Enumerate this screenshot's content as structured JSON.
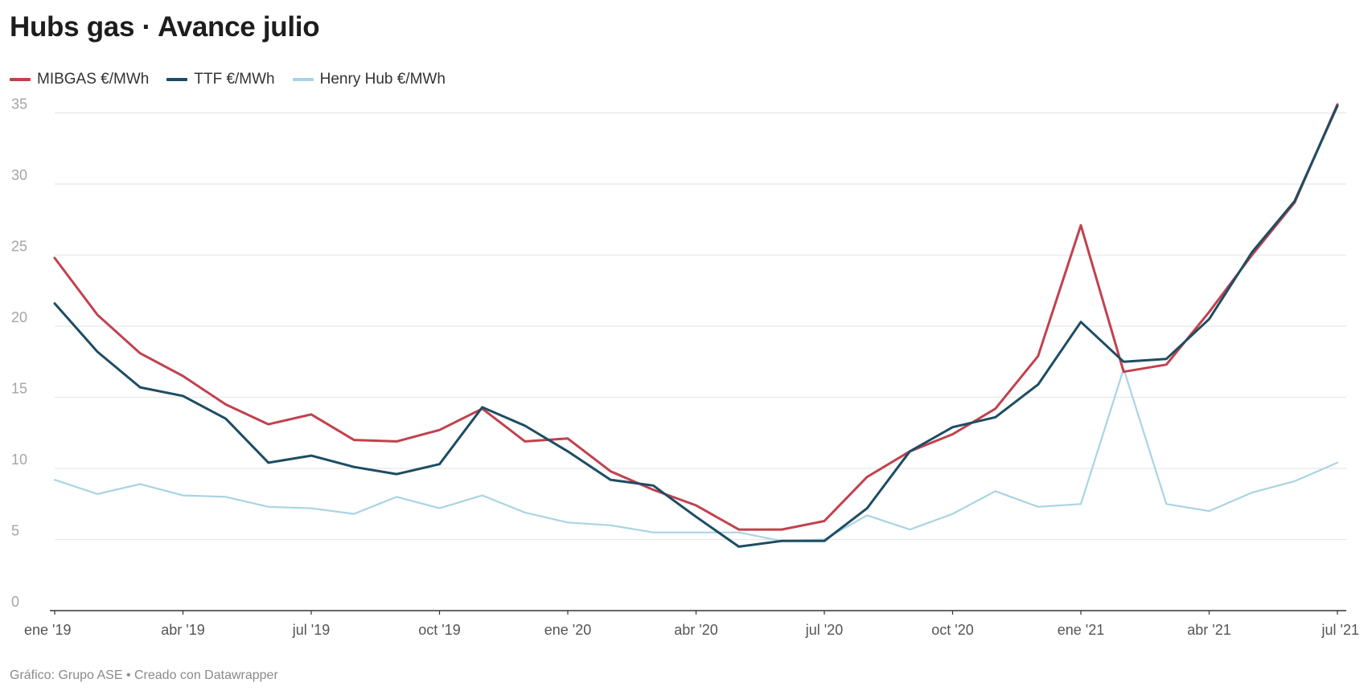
{
  "title": "Hubs gas · Avance julio",
  "footer": "Gráfico: Grupo ASE • Creado con Datawrapper",
  "chart_data": {
    "type": "line",
    "title": "Hubs gas · Avance julio",
    "x": [
      "2019-01",
      "2019-02",
      "2019-03",
      "2019-04",
      "2019-05",
      "2019-06",
      "2019-07",
      "2019-08",
      "2019-09",
      "2019-10",
      "2019-11",
      "2019-12",
      "2020-01",
      "2020-02",
      "2020-03",
      "2020-04",
      "2020-05",
      "2020-06",
      "2020-07",
      "2020-08",
      "2020-09",
      "2020-10",
      "2020-11",
      "2020-12",
      "2021-01",
      "2021-02",
      "2021-03",
      "2021-04",
      "2021-05",
      "2021-06",
      "2021-07"
    ],
    "x_ticks": [
      "ene '19",
      "abr '19",
      "jul '19",
      "oct '19",
      "ene '20",
      "abr '20",
      "jul '20",
      "oct '20",
      "ene '21",
      "abr '21",
      "jul '21"
    ],
    "y_ticks": [
      0,
      5,
      10,
      15,
      20,
      25,
      30,
      35
    ],
    "ylim": [
      0,
      36.5
    ],
    "grid": true,
    "legend_position": "top-left",
    "series": [
      {
        "name": "MIBGAS €/MWh",
        "color": "#c0424e",
        "values": [
          24.8,
          20.8,
          18.1,
          16.5,
          14.5,
          13.1,
          13.8,
          12.0,
          11.9,
          12.7,
          14.2,
          11.9,
          12.1,
          9.8,
          8.5,
          7.4,
          5.7,
          5.7,
          6.3,
          9.4,
          11.2,
          12.4,
          14.2,
          17.9,
          27.1,
          16.8,
          17.3,
          21.0,
          25.0,
          28.7,
          35.6
        ]
      },
      {
        "name": "TTF €/MWh",
        "color": "#1d4d63",
        "values": [
          21.6,
          18.2,
          15.7,
          15.1,
          13.5,
          10.4,
          10.9,
          10.1,
          9.6,
          10.3,
          14.3,
          13.0,
          11.2,
          9.2,
          8.8,
          6.6,
          4.5,
          4.9,
          4.9,
          7.2,
          11.2,
          12.9,
          13.6,
          15.9,
          20.3,
          17.5,
          17.7,
          20.5,
          25.2,
          28.8,
          35.5
        ]
      },
      {
        "name": "Henry Hub €/MWh",
        "color": "#a9d4e3",
        "values": [
          9.2,
          8.2,
          8.9,
          8.1,
          8.0,
          7.3,
          7.2,
          6.8,
          8.0,
          7.2,
          8.1,
          6.9,
          6.2,
          6.0,
          5.5,
          5.5,
          5.5,
          4.9,
          5.0,
          6.7,
          5.7,
          6.8,
          8.4,
          7.3,
          7.5,
          17.0,
          7.5,
          7.0,
          8.3,
          9.1,
          10.4
        ]
      }
    ]
  }
}
